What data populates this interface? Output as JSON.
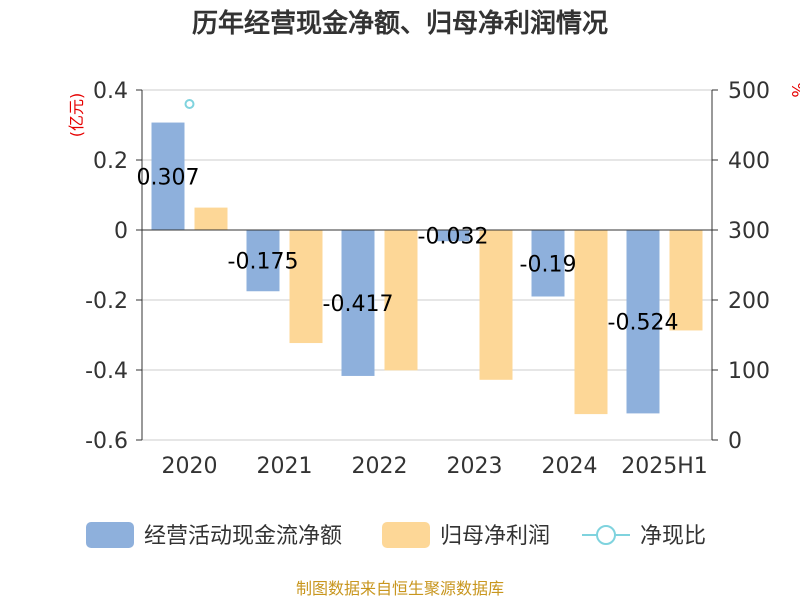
{
  "chart_data": {
    "type": "bar",
    "title": "历年经营现金净额、归母净利润情况",
    "categories": [
      "2020",
      "2021",
      "2022",
      "2023",
      "2024",
      "2025H1"
    ],
    "series": [
      {
        "name": "经营活动现金流净额",
        "axis": "left",
        "color": "#8eb0dc",
        "values": [
          0.307,
          -0.175,
          -0.417,
          -0.032,
          -0.19,
          -0.524
        ],
        "labels": [
          "0.307",
          "-0.175",
          "-0.417",
          "-0.032",
          "-0.19",
          "-0.524"
        ]
      },
      {
        "name": "归母净利润",
        "axis": "left",
        "color": "#fdd797",
        "values": [
          0.064,
          -0.323,
          -0.401,
          -0.428,
          -0.526,
          -0.287
        ]
      },
      {
        "name": "净现比",
        "axis": "right",
        "color": "#7fd3de",
        "marker": "hollow-circle",
        "values": [
          480,
          null,
          null,
          null,
          null,
          null
        ]
      }
    ],
    "ylabel": "(亿元)",
    "ylabel_right": "%",
    "ylim": [
      -0.6,
      0.4
    ],
    "ylim_right": [
      0,
      500
    ],
    "yticks": [
      "-0.6",
      "-0.4",
      "-0.2",
      "0",
      "0.2",
      "0.4"
    ],
    "yticks_right": [
      "0",
      "100",
      "200",
      "300",
      "400",
      "500"
    ],
    "grid": true,
    "legend_position": "bottom"
  },
  "source": "制图数据来自恒生聚源数据库"
}
